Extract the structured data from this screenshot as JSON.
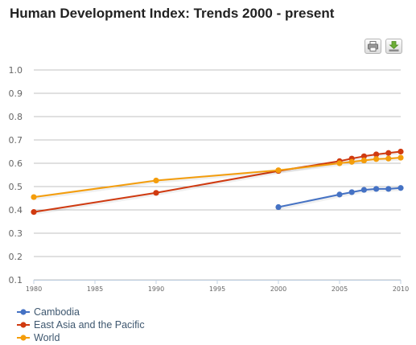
{
  "title": "Human Development Index: Trends 2000 - present",
  "toolbar": {
    "print_icon": "printer-icon",
    "export_icon": "download-icon"
  },
  "chart_data": {
    "type": "line",
    "title": "Human Development Index: Trends 2000 - present",
    "xlabel": "",
    "ylabel": "",
    "xlim": [
      1980,
      2010
    ],
    "ylim": [
      0.1,
      1.0
    ],
    "x_ticks": [
      "1980",
      "1985",
      "1990",
      "1995",
      "2000",
      "2005",
      "2010"
    ],
    "y_ticks": [
      "0.1",
      "0.2",
      "0.3",
      "0.4",
      "0.5",
      "0.6",
      "0.7",
      "0.8",
      "0.9",
      "1.0"
    ],
    "grid": true,
    "legend": "bottom-left",
    "series": [
      {
        "name": "Cambodia",
        "color": "#4572c4",
        "points": [
          [
            2000,
            0.412
          ],
          [
            2005,
            0.466
          ],
          [
            2006,
            0.476
          ],
          [
            2007,
            0.486
          ],
          [
            2008,
            0.49
          ],
          [
            2009,
            0.49
          ],
          [
            2010,
            0.494
          ]
        ]
      },
      {
        "name": "East Asia and the Pacific",
        "color": "#d03a10",
        "points": [
          [
            1980,
            0.391
          ],
          [
            1990,
            0.473
          ],
          [
            2000,
            0.567
          ],
          [
            2005,
            0.609
          ],
          [
            2006,
            0.62
          ],
          [
            2007,
            0.63
          ],
          [
            2008,
            0.638
          ],
          [
            2009,
            0.644
          ],
          [
            2010,
            0.65
          ]
        ]
      },
      {
        "name": "World",
        "color": "#f49d0b",
        "points": [
          [
            1980,
            0.455
          ],
          [
            1990,
            0.526
          ],
          [
            2000,
            0.57
          ],
          [
            2005,
            0.6
          ],
          [
            2006,
            0.606
          ],
          [
            2007,
            0.612
          ],
          [
            2008,
            0.618
          ],
          [
            2009,
            0.62
          ],
          [
            2010,
            0.624
          ]
        ]
      }
    ]
  }
}
